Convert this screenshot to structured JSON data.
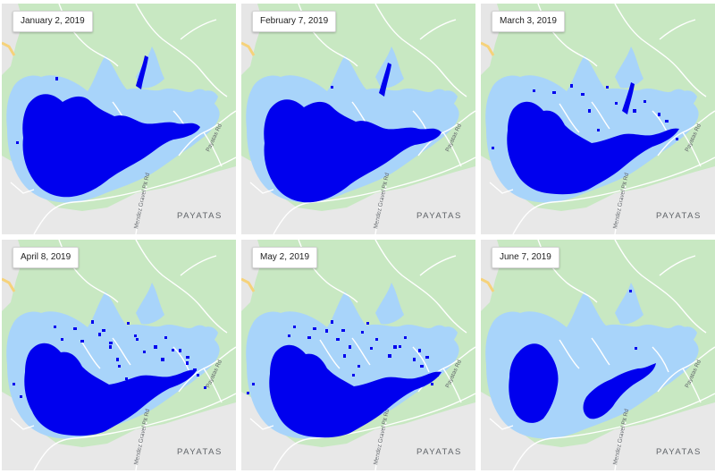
{
  "map": {
    "place_label": "PAYATAS",
    "road_labels": [
      "Payatas Rd",
      "Mendez Gravel Pit Rd"
    ],
    "colors": {
      "forest": "#c8e8c2",
      "urban": "#e8e8e8",
      "road": "#ffffff",
      "highway": "#f6d27a",
      "reservoir_extent": "#a8d4fa",
      "water_detected": "#0000ee"
    }
  },
  "panels": [
    {
      "date": "January 2, 2019",
      "water_coverage": "high"
    },
    {
      "date": "February 7, 2019",
      "water_coverage": "high"
    },
    {
      "date": "March 3, 2019",
      "water_coverage": "medium"
    },
    {
      "date": "April 8, 2019",
      "water_coverage": "medium"
    },
    {
      "date": "May 2, 2019",
      "water_coverage": "medium"
    },
    {
      "date": "June 7, 2019",
      "water_coverage": "low"
    }
  ]
}
